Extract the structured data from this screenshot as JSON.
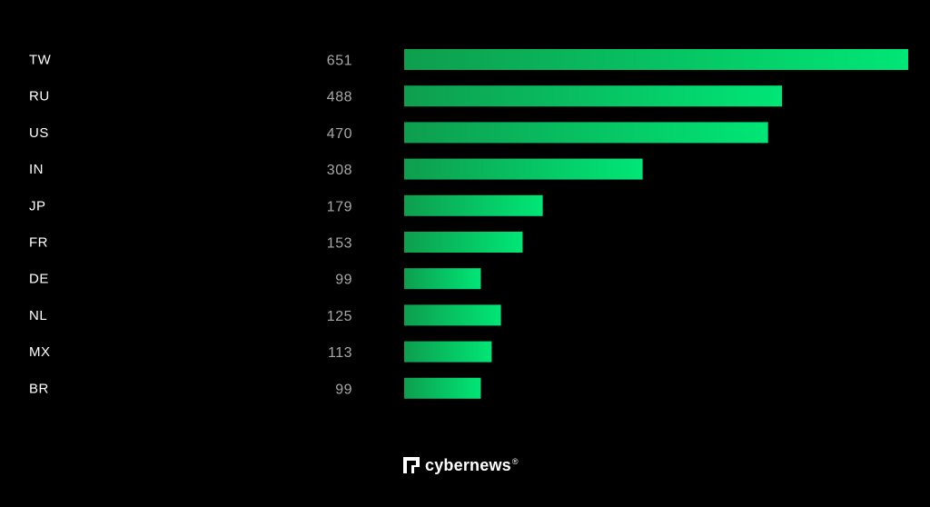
{
  "chart_data": {
    "type": "bar",
    "orientation": "horizontal",
    "categories": [
      "TW",
      "RU",
      "US",
      "IN",
      "JP",
      "FR",
      "DE",
      "NL",
      "MX",
      "BR"
    ],
    "values": [
      651,
      488,
      470,
      308,
      179,
      153,
      99,
      125,
      113,
      99
    ],
    "title": "",
    "xlabel": "",
    "ylabel": "",
    "xlim": [
      0,
      651
    ],
    "grid": false,
    "legend": "none"
  },
  "colors": {
    "background": "#000000",
    "bar_start": "#0e9e4e",
    "bar_end": "#00e676",
    "category_text": "#ffffff",
    "value_text": "#a8a8a8"
  },
  "brand": {
    "name": "cybernews",
    "reg_mark": "®",
    "icon": "cybernews-logo-icon"
  }
}
